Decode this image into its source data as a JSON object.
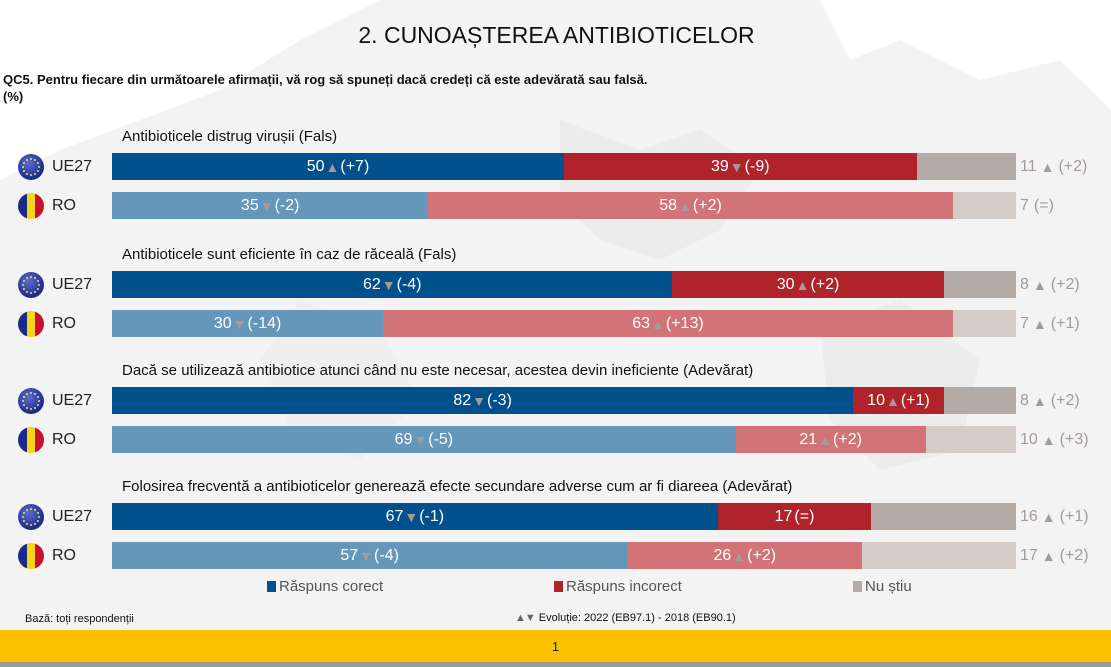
{
  "title": "2. CUNOAȘTEREA ANTIBIOTICELOR",
  "question": "QC5. Pentru fiecare din următoarele afirmații, vă rog să spuneți dacă credeți că este adevărată sau falsă.",
  "unit": "(%)",
  "colors": {
    "ue27": {
      "correct": "#00508c",
      "incorrect": "#b0232a",
      "dontknow": "#b5aba6"
    },
    "ro": {
      "correct": "#6597ba",
      "incorrect": "#d27377",
      "dontknow": "#d5ccc8"
    },
    "trend": "#a39b97",
    "footer": "#fbc100"
  },
  "chart_data": {
    "type": "bar",
    "orientation": "horizontal-stacked",
    "series_names": [
      "Răspuns corect",
      "Răspuns incorect",
      "Nu știu"
    ],
    "groups": [
      {
        "title": "Antibioticele distrug virușii (Fals)",
        "rows": [
          {
            "label": "UE27",
            "flag": "eu-flag",
            "correct": 50,
            "correct_trend": "up",
            "correct_change": "(+7)",
            "incorrect": 39,
            "incorrect_trend": "down",
            "incorrect_change": "(-9)",
            "dontknow": 11,
            "dontknow_trend": "up",
            "dontknow_change": "(+2)"
          },
          {
            "label": "RO",
            "flag": "ro-flag",
            "correct": 35,
            "correct_trend": "down",
            "correct_change": "(-2)",
            "incorrect": 58,
            "incorrect_trend": "up",
            "incorrect_change": "(+2)",
            "dontknow": 7,
            "dontknow_trend": "none",
            "dontknow_change": "(=)"
          }
        ]
      },
      {
        "title": "Antibioticele sunt eficiente în caz de răceală (Fals)",
        "rows": [
          {
            "label": "UE27",
            "flag": "eu-flag",
            "correct": 62,
            "correct_trend": "down",
            "correct_change": "(-4)",
            "incorrect": 30,
            "incorrect_trend": "up",
            "incorrect_change": "(+2)",
            "dontknow": 8,
            "dontknow_trend": "up",
            "dontknow_change": "(+2)"
          },
          {
            "label": "RO",
            "flag": "ro-flag",
            "correct": 30,
            "correct_trend": "down",
            "correct_change": "(-14)",
            "incorrect": 63,
            "incorrect_trend": "up",
            "incorrect_change": "(+13)",
            "dontknow": 7,
            "dontknow_trend": "up",
            "dontknow_change": "(+1)"
          }
        ]
      },
      {
        "title": "Dacă se utilizează antibiotice atunci când nu este necesar, acestea devin ineficiente (Adevărat)",
        "rows": [
          {
            "label": "UE27",
            "flag": "eu-flag",
            "correct": 82,
            "correct_trend": "down",
            "correct_change": "(-3)",
            "incorrect": 10,
            "incorrect_trend": "up",
            "incorrect_change": "(+1)",
            "dontknow": 8,
            "dontknow_trend": "up",
            "dontknow_change": "(+2)"
          },
          {
            "label": "RO",
            "flag": "ro-flag",
            "correct": 69,
            "correct_trend": "down",
            "correct_change": "(-5)",
            "incorrect": 21,
            "incorrect_trend": "up",
            "incorrect_change": "(+2)",
            "dontknow": 10,
            "dontknow_trend": "up",
            "dontknow_change": "(+3)"
          }
        ]
      },
      {
        "title": "Folosirea frecventă a antibioticelor generează efecte secundare adverse cum ar fi diareea (Adevărat)",
        "rows": [
          {
            "label": "UE27",
            "flag": "eu-flag",
            "correct": 67,
            "correct_trend": "down",
            "correct_change": "(-1)",
            "incorrect": 17,
            "incorrect_trend": "none",
            "incorrect_change": "(=)",
            "dontknow": 16,
            "dontknow_trend": "up",
            "dontknow_change": "(+1)"
          },
          {
            "label": "RO",
            "flag": "ro-flag",
            "correct": 57,
            "correct_trend": "down",
            "correct_change": "(-4)",
            "incorrect": 26,
            "incorrect_trend": "up",
            "incorrect_change": "(+2)",
            "dontknow": 17,
            "dontknow_trend": "up",
            "dontknow_change": "(+2)"
          }
        ]
      }
    ],
    "xlim": [
      0,
      100
    ],
    "legend": [
      "Răspuns corect",
      "Răspuns incorect",
      "Nu știu"
    ],
    "legend_position": "bottom"
  },
  "legend": {
    "correct": "Răspuns corect",
    "incorrect": "Răspuns incorect",
    "dontknow": "Nu știu"
  },
  "footnotes": {
    "base": "Bază: toți respondenții",
    "evolution_arrows": "▲▼",
    "evolution": "Evoluție: 2022 (EB97.1) - 2018 (EB90.1)"
  },
  "page_number": "1"
}
